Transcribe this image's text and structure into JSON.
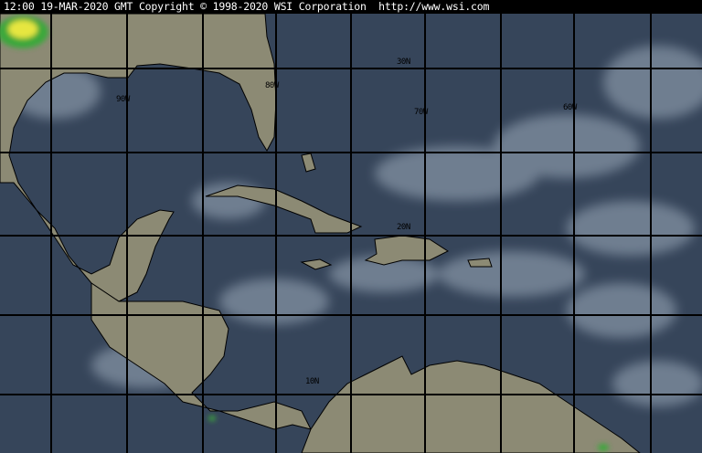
{
  "header": {
    "timestamp": "12:00 19-MAR-2020 GMT",
    "copyright": "Copyright © 1998-2020 WSI Corporation",
    "url": "http://www.wsi.com"
  },
  "grid_labels": {
    "lat_30": "30N",
    "lat_20": "20N",
    "lat_10": "10N",
    "lon_90": "90W",
    "lon_80": "80W",
    "lon_70": "70W",
    "lon_60": "60W"
  },
  "colors": {
    "ocean": "#36455a",
    "land": "#8c8a74",
    "cloud": "#aab6c4",
    "grid": "#000000"
  }
}
